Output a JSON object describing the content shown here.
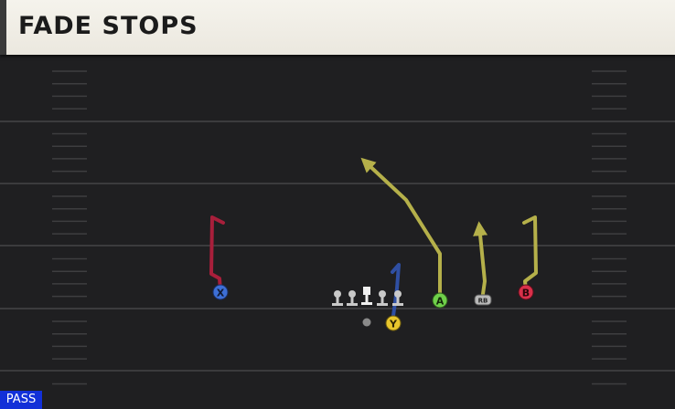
{
  "play": {
    "title": "FADE STOPS",
    "play_type": "PASS"
  },
  "players": [
    {
      "id": "X",
      "label": "X",
      "role": "receiver",
      "color": "#3d6fd6",
      "route": "route-x"
    },
    {
      "id": "Y",
      "label": "Y",
      "role": "receiver",
      "color": "#e8c62c",
      "route": "block"
    },
    {
      "id": "A",
      "label": "A",
      "role": "receiver",
      "color": "#6fd04a",
      "route": "route-a"
    },
    {
      "id": "RB",
      "label": "RB",
      "role": "running-back",
      "color": "#b8b8b8",
      "route": "route-rb"
    },
    {
      "id": "B",
      "label": "B",
      "role": "receiver",
      "color": "#d9304a",
      "route": "route-b"
    }
  ],
  "route_colors": {
    "x": "#a81f3b",
    "a": "#b5b04a",
    "rb": "#b5b04a",
    "b": "#b5b04a",
    "block": "#2f4fa3"
  },
  "colors": {
    "field": "#1f1f21",
    "yard_line": "#3b3b3d",
    "hash": "#4a4a4c",
    "badge": "#1230d8"
  }
}
